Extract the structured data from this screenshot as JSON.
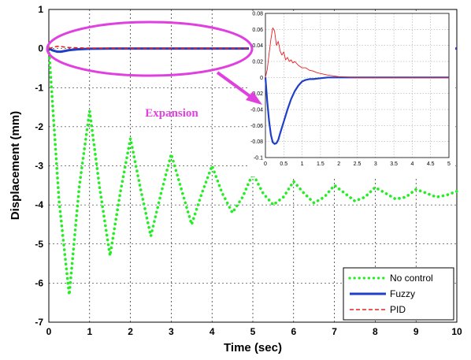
{
  "chart_data": {
    "type": "line",
    "xlabel": "Time (sec)",
    "ylabel": "Displacement (mm)",
    "xlim": [
      0,
      10
    ],
    "ylim": [
      -7,
      1
    ],
    "xticks": [
      0,
      1,
      2,
      3,
      4,
      5,
      6,
      7,
      8,
      9,
      10
    ],
    "yticks": [
      1,
      0,
      -1,
      -2,
      -3,
      -4,
      -5,
      -6,
      -7
    ],
    "grid": true,
    "legend_position": "bottom-right",
    "annotation": "Expansion",
    "series": [
      {
        "name": "No control",
        "color": "#22ee22",
        "style": "dotted",
        "x": [
          0,
          0.25,
          0.5,
          0.75,
          1.0,
          1.25,
          1.5,
          1.75,
          2.0,
          2.25,
          2.5,
          2.75,
          3.0,
          3.25,
          3.5,
          3.75,
          4.0,
          4.25,
          4.5,
          4.75,
          5.0,
          5.25,
          5.5,
          5.75,
          6.0,
          6.25,
          6.5,
          6.75,
          7.0,
          7.25,
          7.5,
          7.75,
          8.0,
          8.25,
          8.5,
          8.75,
          9.0,
          9.25,
          9.5,
          9.75,
          10.0
        ],
        "y": [
          0,
          -3.9,
          -6.3,
          -3.5,
          -1.6,
          -3.6,
          -5.3,
          -3.7,
          -2.3,
          -3.6,
          -4.8,
          -3.7,
          -2.7,
          -3.6,
          -4.5,
          -3.7,
          -3.0,
          -3.7,
          -4.2,
          -3.8,
          -3.2,
          -3.7,
          -4.0,
          -3.8,
          -3.4,
          -3.7,
          -3.95,
          -3.8,
          -3.5,
          -3.7,
          -3.9,
          -3.8,
          -3.55,
          -3.7,
          -3.85,
          -3.8,
          -3.6,
          -3.7,
          -3.8,
          -3.75,
          -3.65
        ]
      },
      {
        "name": "Fuzzy",
        "color": "#1f3fc8",
        "style": "solid",
        "x": [
          0,
          0.1,
          0.2,
          0.3,
          0.4,
          0.5,
          0.7,
          1.0,
          1.5,
          2.0,
          3.0,
          5.0,
          10.0
        ],
        "y": [
          0,
          -0.05,
          -0.08,
          -0.08,
          -0.06,
          -0.04,
          -0.02,
          -0.005,
          0,
          0,
          0,
          0,
          0
        ]
      },
      {
        "name": "PID",
        "color": "#e82020",
        "style": "dashed",
        "x": [
          0,
          0.1,
          0.2,
          0.3,
          0.4,
          0.5,
          0.7,
          1.0,
          1.5,
          2.0,
          3.0,
          5.0,
          10.0
        ],
        "y": [
          0,
          0.03,
          0.055,
          0.05,
          0.035,
          0.025,
          0.018,
          0.01,
          0.004,
          0.001,
          0,
          0,
          0
        ]
      }
    ],
    "inset": {
      "xlim": [
        0,
        5
      ],
      "ylim": [
        -0.1,
        0.08
      ],
      "xticks": [
        0,
        0.5,
        1,
        1.5,
        2,
        2.5,
        3,
        3.5,
        4,
        4.5,
        5
      ],
      "yticks": [
        0.08,
        0.06,
        0.04,
        0.02,
        0,
        -0.02,
        -0.04,
        -0.06,
        -0.08,
        -0.1
      ],
      "xtick_labels": [
        "0",
        "0.5",
        "1",
        "1.5",
        "2",
        "2.5",
        "3",
        "3.5",
        "4",
        "4.5",
        "5"
      ],
      "ytick_labels": [
        "0.08",
        "0.06",
        "0.04",
        "0.02",
        "0",
        "-0.02",
        "-0.04",
        "-0.06",
        "-0.08",
        "-0.1"
      ],
      "series": [
        {
          "name": "Fuzzy",
          "color": "#1f3fc8",
          "x": [
            0,
            0.05,
            0.1,
            0.15,
            0.2,
            0.25,
            0.3,
            0.35,
            0.4,
            0.5,
            0.6,
            0.7,
            0.8,
            0.9,
            1.0,
            1.1,
            1.2,
            1.3,
            1.5,
            1.7,
            2.0,
            2.5,
            3.0,
            4.0,
            5.0
          ],
          "y": [
            0,
            -0.03,
            -0.055,
            -0.072,
            -0.081,
            -0.083,
            -0.082,
            -0.078,
            -0.07,
            -0.055,
            -0.04,
            -0.027,
            -0.017,
            -0.01,
            -0.005,
            -0.003,
            -0.002,
            -0.002,
            -0.001,
            0,
            0,
            0,
            0,
            0,
            0
          ]
        },
        {
          "name": "PID",
          "color": "#e82020",
          "x": [
            0,
            0.05,
            0.1,
            0.15,
            0.2,
            0.25,
            0.3,
            0.35,
            0.4,
            0.45,
            0.5,
            0.55,
            0.6,
            0.65,
            0.7,
            0.75,
            0.8,
            0.9,
            1.0,
            1.1,
            1.2,
            1.3,
            1.4,
            1.5,
            1.7,
            2.0,
            2.5,
            3.0,
            4.0,
            5.0
          ],
          "y": [
            0,
            0.01,
            0.03,
            0.048,
            0.062,
            0.058,
            0.04,
            0.045,
            0.033,
            0.028,
            0.032,
            0.022,
            0.025,
            0.02,
            0.022,
            0.018,
            0.02,
            0.015,
            0.012,
            0.012,
            0.009,
            0.008,
            0.006,
            0.005,
            0.003,
            0.001,
            0,
            0,
            0,
            0
          ]
        }
      ]
    }
  }
}
